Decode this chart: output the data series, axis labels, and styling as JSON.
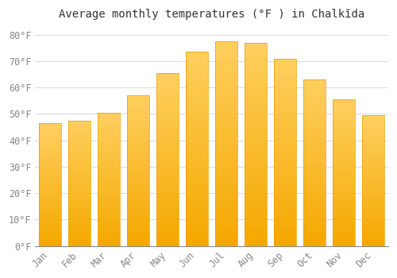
{
  "title": "Average monthly temperatures (°F ) in Chalkĭda",
  "months": [
    "Jan",
    "Feb",
    "Mar",
    "Apr",
    "May",
    "Jun",
    "Jul",
    "Aug",
    "Sep",
    "Oct",
    "Nov",
    "Dec"
  ],
  "values": [
    46.5,
    47.5,
    50.5,
    57.0,
    65.5,
    73.5,
    77.5,
    77.0,
    71.0,
    63.0,
    55.5,
    49.5
  ],
  "bar_color_top": "#FFC04C",
  "bar_color_bottom": "#F5A800",
  "bar_edge_color": "#E8A000",
  "background_color": "#FFFFFF",
  "grid_color": "#DDDDDD",
  "ylim": [
    0,
    84
  ],
  "yticks": [
    0,
    10,
    20,
    30,
    40,
    50,
    60,
    70,
    80
  ],
  "ytick_labels": [
    "0°F",
    "10°F",
    "20°F",
    "30°F",
    "40°F",
    "50°F",
    "60°F",
    "70°F",
    "80°F"
  ],
  "title_fontsize": 10,
  "tick_fontsize": 8.5,
  "font_family": "monospace",
  "bar_width": 0.75
}
